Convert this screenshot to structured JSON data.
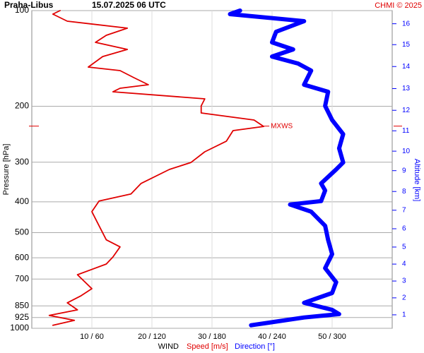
{
  "chart_data": {
    "type": "line",
    "title": "Praha-Libus",
    "subtitle": "15.07.2025 06 UTC",
    "credit": "CHMI © 2025",
    "ylabel": "Pressure [hPa]",
    "y2label": "Altitude [km]",
    "xlabel": "WIND",
    "ylim": [
      100,
      1000
    ],
    "log_scale": true,
    "yticks": [
      100,
      200,
      300,
      400,
      500,
      600,
      700,
      850,
      925,
      1000
    ],
    "xlim": [
      0,
      60
    ],
    "x2lim": [
      0,
      360
    ],
    "xticks": [
      {
        "value": 10,
        "label": "10 / 60"
      },
      {
        "value": 20,
        "label": "20 / 120"
      },
      {
        "value": 30,
        "label": "30 / 180"
      },
      {
        "value": 40,
        "label": "40 / 240"
      },
      {
        "value": 50,
        "label": "50 / 300"
      }
    ],
    "y2ticks": [
      1,
      2,
      3,
      4,
      5,
      6,
      7,
      8,
      9,
      10,
      11,
      12,
      13,
      14,
      15,
      16
    ],
    "y2tick_pressure": [
      907,
      802,
      710,
      628,
      555,
      486,
      425,
      371,
      319,
      277,
      239,
      206,
      176,
      150,
      128,
      110
    ],
    "grid": true,
    "annotations": [
      {
        "text": "MXWS",
        "value": 38.6,
        "pressure": 231
      }
    ],
    "series": [
      {
        "name": "Speed [m/s]",
        "color": "#e00000",
        "values": [
          4.7,
          3.5,
          5.9,
          15.9,
          12.4,
          10.6,
          15.9,
          11.8,
          9.4,
          14.7,
          17,
          19.4,
          14.7,
          13.5,
          28.8,
          28.2,
          28.2,
          37,
          38.6,
          33.5,
          32.4,
          28.8,
          26.5,
          22.9,
          18.2,
          16.5,
          11.2,
          10,
          11.2,
          12.4,
          14.7,
          13.5,
          12.4,
          7.6,
          10,
          8.2,
          5.9,
          7.6,
          2.9,
          7.1,
          3.5
        ],
        "pressure": [
          100,
          102.6,
          108,
          113.6,
          119.6,
          125.9,
          132.5,
          139.5,
          150.6,
          154.5,
          162.6,
          171.1,
          175.6,
          180.1,
          189.6,
          199.5,
          210,
          221,
          231.6,
          238.6,
          257.6,
          278.3,
          300.6,
          316.2,
          350,
          377.9,
          397.6,
          429.5,
          475.7,
          526.8,
          554.4,
          596.4,
          627.6,
          678,
          750.6,
          790,
          831.4,
          875,
          910.8,
          943.9,
          978.1
        ]
      },
      {
        "name": "Direction [°]",
        "color": "#0000ff",
        "axis": "x2",
        "values": [
          208,
          198,
          272,
          244,
          240,
          261,
          240,
          266,
          279,
          272,
          296,
          293,
          300,
          311,
          307,
          311,
          304,
          289,
          293,
          289,
          258,
          279,
          293,
          296,
          300,
          293,
          304,
          300,
          272,
          300,
          307,
          272,
          219
        ],
        "pressure": [
          100,
          102.6,
          108,
          116.6,
          125.9,
          132.5,
          139.5,
          146.8,
          154.5,
          171.1,
          180.1,
          199.5,
          221,
          244.9,
          271.3,
          300.6,
          316.2,
          350,
          368.4,
          397.6,
          407.7,
          429.5,
          475.7,
          526.8,
          584.3,
          646.8,
          716,
          774.3,
          831.4,
          875,
          902.4,
          924.6,
          978.1
        ]
      }
    ]
  }
}
